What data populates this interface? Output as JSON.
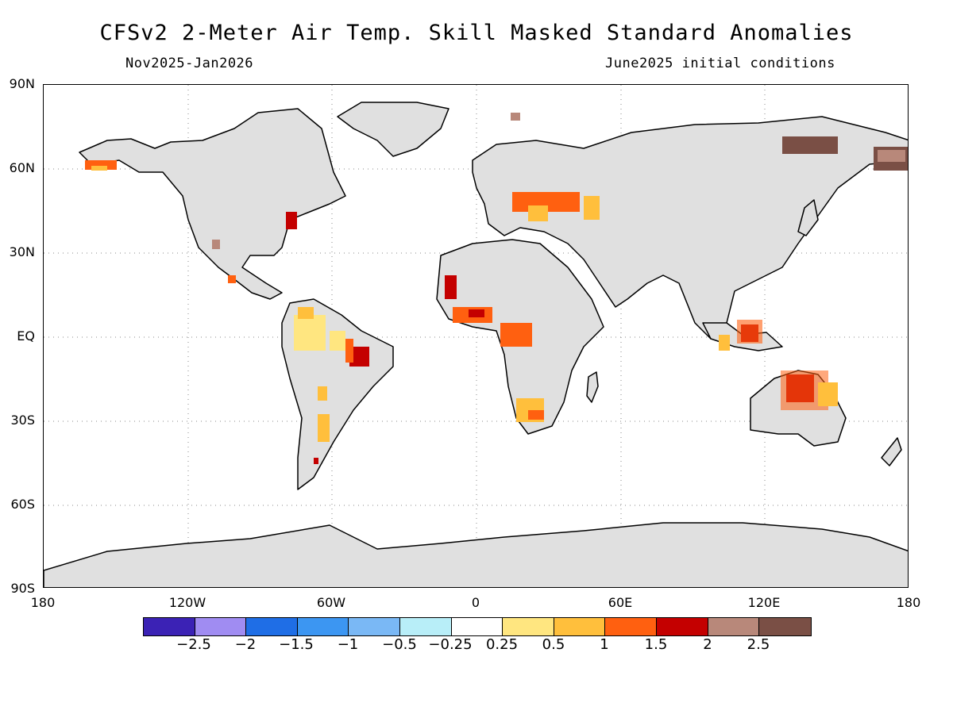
{
  "title": "CFSv2 2-Meter Air Temp. Skill Masked Standard Anomalies",
  "subtitle_left": "Nov2025-Jan2026",
  "subtitle_right": "June2025 initial conditions",
  "map": {
    "land_color": "#e0e0e0",
    "ocean_color": "#ffffff",
    "lat_labels": [
      "90N",
      "60N",
      "30N",
      "EQ",
      "30S",
      "60S",
      "90S"
    ],
    "lon_labels": [
      "180",
      "120W",
      "60W",
      "0",
      "60E",
      "120E",
      "180"
    ],
    "gridlines": "dotted"
  },
  "colorbar": {
    "colors": [
      "#3b22b5",
      "#a08cf2",
      "#1f6ee6",
      "#3c96f2",
      "#7ab8f5",
      "#b8eef8",
      "#ffffff",
      "#ffe680",
      "#ffbf3c",
      "#ff6010",
      "#c40000",
      "#b8887a",
      "#7a4f45"
    ],
    "labels": [
      "-2.5",
      "-2",
      "-1.5",
      "-1",
      "-0.5",
      "-0.25",
      "0.25",
      "0.5",
      "1",
      "1.5",
      "2",
      "2.5"
    ]
  },
  "anomaly_regions": [
    {
      "name": "Alaska",
      "level": "1-1.5"
    },
    {
      "name": "Eastern United States",
      "level": "1.5-2"
    },
    {
      "name": "Northern South America",
      "level": "0.25-1"
    },
    {
      "name": "Northeastern Brazil",
      "level": "1.5-2"
    },
    {
      "name": "West Africa",
      "level": "1-2"
    },
    {
      "name": "Central Africa",
      "level": "1-1.5"
    },
    {
      "name": "Southern Africa",
      "level": "0.5-1.5"
    },
    {
      "name": "Eastern Europe",
      "level": "0.5-1.5"
    },
    {
      "name": "Siberia",
      "level": ">2.5"
    },
    {
      "name": "Kamchatka",
      "level": "2-2.5"
    },
    {
      "name": "Borneo",
      "level": "1.5-2"
    },
    {
      "name": "Northern Australia",
      "level": "1-2"
    }
  ]
}
